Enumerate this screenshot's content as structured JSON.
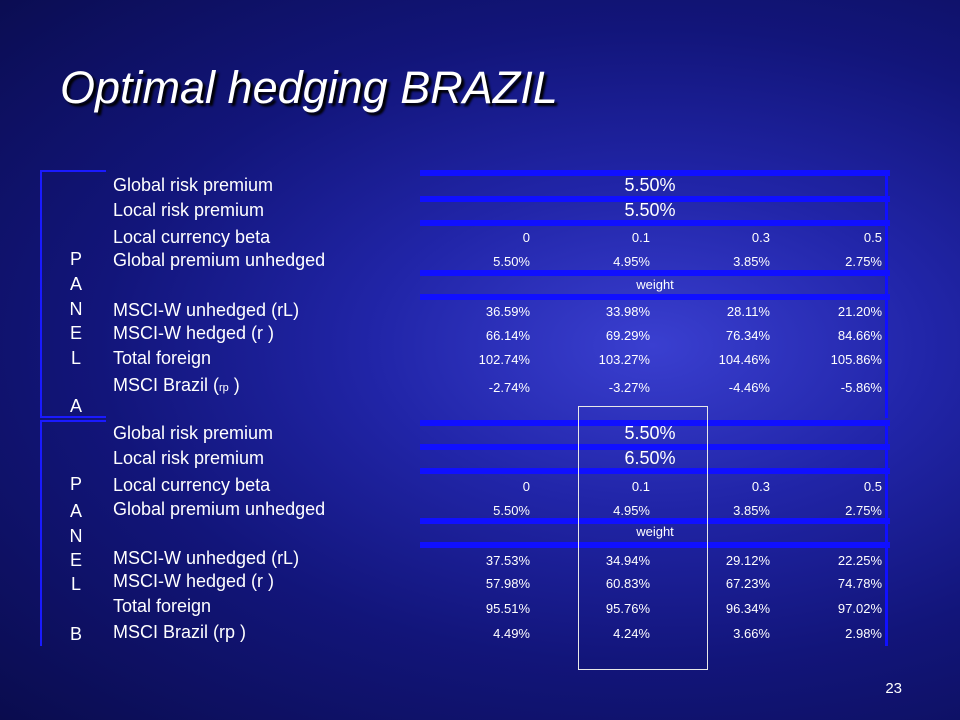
{
  "title": "Optimal hedging BRAZIL",
  "page_number": "23",
  "panel_a": {
    "side_letters": [
      "P",
      "A",
      "N",
      "E",
      "L",
      "A"
    ],
    "global_risk_premium": {
      "label": "Global risk premium",
      "value": "5.50%"
    },
    "local_risk_premium": {
      "label": "Local risk premium",
      "value": "5.50%"
    },
    "local_currency_beta": {
      "label": "Local currency beta",
      "values": [
        "0",
        "0.1",
        "0.3",
        "0.5"
      ]
    },
    "global_premium_unhedged": {
      "label": "Global premium unhedged",
      "values": [
        "5.50%",
        "4.95%",
        "3.85%",
        "2.75%"
      ]
    },
    "weight_label": "weight",
    "msci_w_unhedged": {
      "label": "MSCI-W unhedged (rL)",
      "values": [
        "36.59%",
        "33.98%",
        "28.11%",
        "21.20%"
      ]
    },
    "msci_w_hedged": {
      "label": "MSCI-W hedged (r )",
      "values": [
        "66.14%",
        "69.29%",
        "76.34%",
        "84.66%"
      ]
    },
    "total_foreign": {
      "label": "Total foreign",
      "values": [
        "102.74%",
        "103.27%",
        "104.46%",
        "105.86%"
      ]
    },
    "msci_brazil": {
      "label_prefix": "MSCI Brazil (",
      "label_sub": "rp",
      "label_suffix": " )",
      "values": [
        "-2.74%",
        "-3.27%",
        "-4.46%",
        "-5.86%"
      ]
    }
  },
  "panel_b": {
    "side_letters": [
      "P",
      "A",
      "N",
      "E",
      "L",
      "B"
    ],
    "global_risk_premium": {
      "label": "Global risk premium",
      "value": "5.50%"
    },
    "local_risk_premium": {
      "label": "Local risk premium",
      "value": "6.50%"
    },
    "local_currency_beta": {
      "label": "Local currency beta",
      "values": [
        "0",
        "0.1",
        "0.3",
        "0.5"
      ]
    },
    "global_premium_unhedged": {
      "label": "Global premium unhedged",
      "values": [
        "5.50%",
        "4.95%",
        "3.85%",
        "2.75%"
      ]
    },
    "weight_label": "weight",
    "msci_w_unhedged": {
      "label": "MSCI-W unhedged (rL)",
      "values": [
        "37.53%",
        "34.94%",
        "29.12%",
        "22.25%"
      ]
    },
    "msci_w_hedged": {
      "label": "MSCI-W hedged (r )",
      "values": [
        "57.98%",
        "60.83%",
        "67.23%",
        "74.78%"
      ]
    },
    "total_foreign": {
      "label": "Total foreign",
      "values": [
        "95.51%",
        "95.76%",
        "96.34%",
        "97.02%"
      ]
    },
    "msci_brazil": {
      "label": "MSCI Brazil (rp )",
      "values": [
        "4.49%",
        "4.24%",
        "3.66%",
        "2.98%"
      ]
    }
  }
}
